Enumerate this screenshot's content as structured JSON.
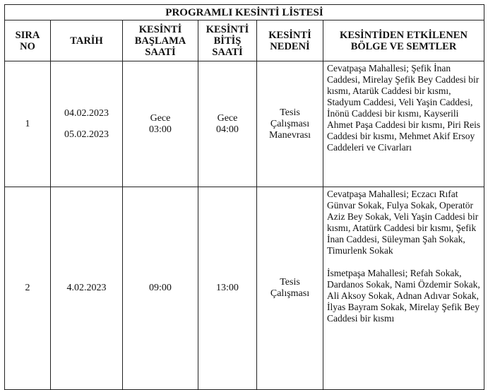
{
  "title": "PROGRAMLI KESİNTİ LİSTESİ",
  "headers": [
    "SIRA NO",
    "TARİH",
    "KESİNTİ BAŞLAMA SAATİ",
    "KESİNTİ BİTİŞ SAATİ",
    "KESİNTİ NEDENİ",
    "KESİNTİDEN ETKİLENEN BÖLGE VE SEMTLER"
  ],
  "rows": [
    {
      "no": "1",
      "dates": [
        "04.02.2023",
        "05.02.2023"
      ],
      "start": [
        "Gece",
        "03:00"
      ],
      "end": [
        "Gece",
        "04:00"
      ],
      "reason": [
        "Tesis",
        "Çalışması",
        "Manevrası"
      ],
      "areas": [
        "Cevatpaşa Mahallesi; Şefik İnan Caddesi, Mirelay Şefik Bey Caddesi bir kısmı, Atarük Caddesi bir kısmı, Stadyum Caddesi, Veli Yaşin Caddesi, İnönü Caddesi bir kısmı, Kayserili Ahmet Paşa Caddesi bir kısmı, Piri Reis Caddesi bir kısmı, Mehmet Akif Ersoy Caddeleri ve Civarları"
      ]
    },
    {
      "no": "2",
      "dates": [
        "4.02.2023"
      ],
      "start": [
        "09:00"
      ],
      "end": [
        "13:00"
      ],
      "reason": [
        "Tesis",
        "Çalışması"
      ],
      "areas": [
        "Cevatpaşa Mahallesi; Eczacı Rıfat Günvar Sokak, Fulya Sokak, Operatör Aziz Bey Sokak, Veli Yaşin Caddesi bir kısmı, Atatürk Caddesi bir kısmı, Şefik İnan Caddesi, Süleyman Şah Sokak, Timurlenk Sokak",
        "İsmetpaşa Mahallesi; Refah Sokak, Dardanos Sokak, Nami Özdemir Sokak, Ali Aksoy Sokak, Adnan Adıvar Sokak, İlyas Bayram Sokak, Mirelay Şefik Bey Caddesi bir kısmı"
      ]
    }
  ]
}
